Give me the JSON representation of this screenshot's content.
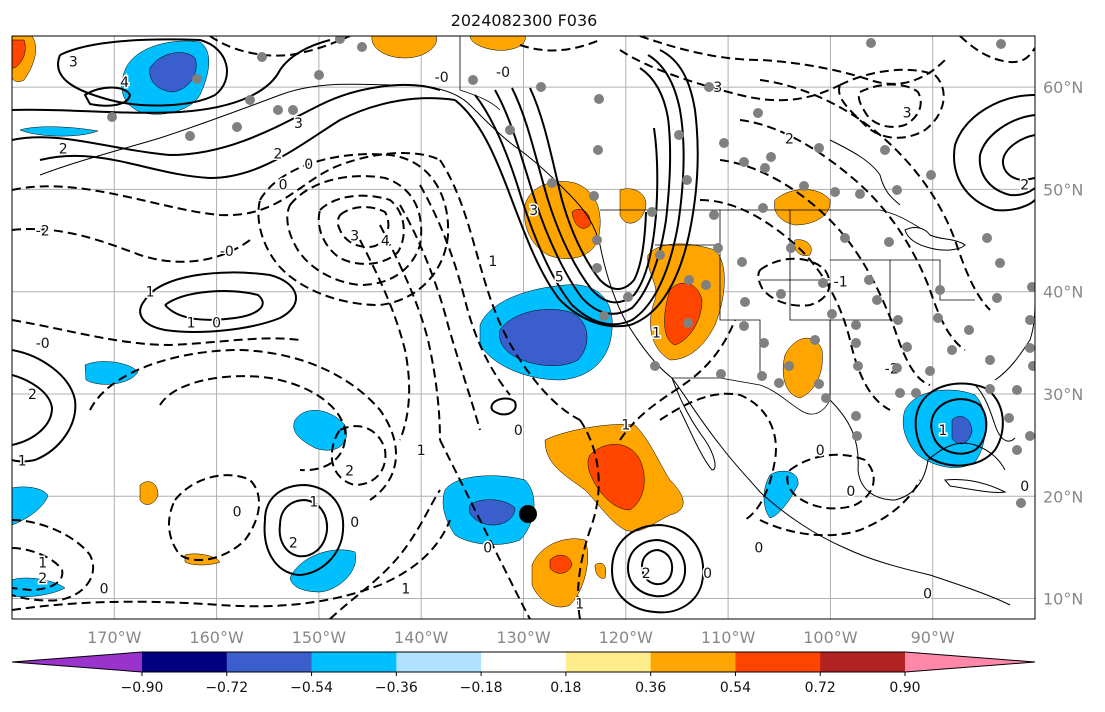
{
  "title": "2024082300 F036",
  "map": {
    "lon_range": [
      -180,
      -80
    ],
    "lat_range": [
      8,
      65
    ],
    "lon_ticks": [
      {
        "value": -170,
        "label": "170°W"
      },
      {
        "value": -160,
        "label": "160°W"
      },
      {
        "value": -150,
        "label": "150°W"
      },
      {
        "value": -140,
        "label": "140°W"
      },
      {
        "value": -130,
        "label": "130°W"
      },
      {
        "value": -120,
        "label": "120°W"
      },
      {
        "value": -110,
        "label": "110°W"
      },
      {
        "value": -100,
        "label": "100°W"
      },
      {
        "value": -90,
        "label": "90°W"
      }
    ],
    "lat_ticks": [
      {
        "value": 60,
        "label": "60°N"
      },
      {
        "value": 50,
        "label": "50°N"
      },
      {
        "value": 40,
        "label": "40°N"
      },
      {
        "value": 30,
        "label": "30°N"
      },
      {
        "value": 20,
        "label": "20°N"
      },
      {
        "value": 10,
        "label": "10°N"
      }
    ],
    "grid": true,
    "contour_labels": [
      {
        "text": "3",
        "lon": -174,
        "lat": 62.5
      },
      {
        "text": "4",
        "lon": -169,
        "lat": 60.5
      },
      {
        "text": "2",
        "lon": -175,
        "lat": 54
      },
      {
        "text": "3",
        "lon": -152,
        "lat": 56.5
      },
      {
        "text": "2",
        "lon": -154,
        "lat": 53.5
      },
      {
        "text": "0",
        "lon": -151,
        "lat": 52.5
      },
      {
        "text": "0",
        "lon": -153.5,
        "lat": 50.5
      },
      {
        "text": "-2",
        "lon": -177,
        "lat": 46
      },
      {
        "text": "-0",
        "lon": -159,
        "lat": 44
      },
      {
        "text": "3",
        "lon": -146.5,
        "lat": 45.5
      },
      {
        "text": "4",
        "lon": -143.5,
        "lat": 45
      },
      {
        "text": "1",
        "lon": -166.5,
        "lat": 40
      },
      {
        "text": "0",
        "lon": -160,
        "lat": 37
      },
      {
        "text": "-0",
        "lon": -177,
        "lat": 35
      },
      {
        "text": "-0",
        "lon": -138,
        "lat": 61
      },
      {
        "text": "-0",
        "lon": -132,
        "lat": 61.5
      },
      {
        "text": "3",
        "lon": -129,
        "lat": 48
      },
      {
        "text": "1",
        "lon": -133,
        "lat": 43
      },
      {
        "text": "5",
        "lon": -126.5,
        "lat": 41.5
      },
      {
        "text": "1",
        "lon": -117,
        "lat": 36
      },
      {
        "text": "3",
        "lon": -111,
        "lat": 60
      },
      {
        "text": "2",
        "lon": -104,
        "lat": 55
      },
      {
        "text": "3",
        "lon": -92.5,
        "lat": 57.5
      },
      {
        "text": "2",
        "lon": -81,
        "lat": 50.5
      },
      {
        "text": "-1",
        "lon": -99,
        "lat": 41
      },
      {
        "text": "-2",
        "lon": -94,
        "lat": 32.5
      },
      {
        "text": "2",
        "lon": -178,
        "lat": 30
      },
      {
        "text": "1",
        "lon": -179,
        "lat": 23.5
      },
      {
        "text": "1",
        "lon": -177,
        "lat": 13.5
      },
      {
        "text": "2",
        "lon": -177,
        "lat": 12
      },
      {
        "text": "0",
        "lon": -130.5,
        "lat": 26.5
      },
      {
        "text": "1",
        "lon": -140,
        "lat": 24.5
      },
      {
        "text": "2",
        "lon": -147,
        "lat": 22.5
      },
      {
        "text": "1",
        "lon": -120,
        "lat": 27
      },
      {
        "text": "0",
        "lon": -158,
        "lat": 18.5
      },
      {
        "text": "1",
        "lon": -150.5,
        "lat": 19.5
      },
      {
        "text": "2",
        "lon": -152.5,
        "lat": 15.5
      },
      {
        "text": "0",
        "lon": -146.5,
        "lat": 17.5
      },
      {
        "text": "0",
        "lon": -133.5,
        "lat": 15
      },
      {
        "text": "1",
        "lon": -141.5,
        "lat": 11
      },
      {
        "text": "1",
        "lon": -124.5,
        "lat": 9.5
      },
      {
        "text": "2",
        "lon": -118,
        "lat": 12.5
      },
      {
        "text": "0",
        "lon": -112,
        "lat": 12.5
      },
      {
        "text": "0",
        "lon": -107,
        "lat": 15
      },
      {
        "text": "0",
        "lon": -101,
        "lat": 24.5
      },
      {
        "text": "1",
        "lon": -89,
        "lat": 26.5
      },
      {
        "text": "0",
        "lon": -81,
        "lat": 21
      },
      {
        "text": "0",
        "lon": -98,
        "lat": 20.5
      },
      {
        "text": "0",
        "lon": -90.5,
        "lat": 10.5
      },
      {
        "text": "0",
        "lon": -171,
        "lat": 11
      },
      {
        "text": "1",
        "lon": -162.5,
        "lat": 37
      }
    ]
  },
  "colorbar": {
    "colors": [
      "#9933cc",
      "#000080",
      "#3a5fcd",
      "#00bfff",
      "#b0e2ff",
      "#ffffff",
      "#ffec8b",
      "#ffa500",
      "#ff4500",
      "#b22222",
      "#ff88aa"
    ],
    "labels": [
      "−0.90",
      "−0.72",
      "−0.54",
      "−0.36",
      "−0.18",
      "0.18",
      "0.36",
      "0.54",
      "0.72",
      "0.90"
    ]
  }
}
